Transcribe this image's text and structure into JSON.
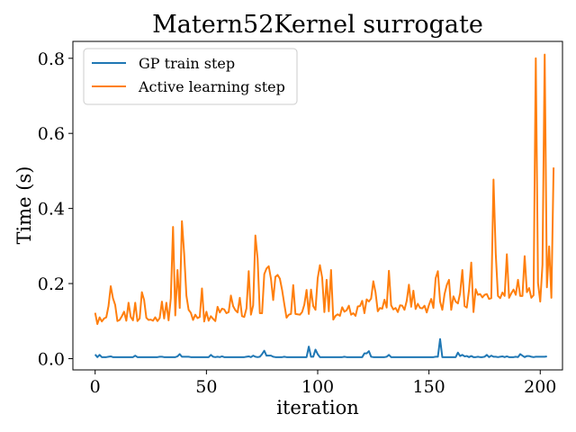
{
  "chart_data": {
    "type": "line",
    "title": "Matern52Kernel surrogate",
    "xlabel": "iteration",
    "ylabel": "Time (s)",
    "xlim": [
      -10,
      210
    ],
    "ylim": [
      -0.03,
      0.845
    ],
    "xticks": [
      0,
      50,
      100,
      150,
      200
    ],
    "yticks": [
      0.0,
      0.2,
      0.4,
      0.6,
      0.8
    ],
    "xtick_labels": [
      "0",
      "50",
      "100",
      "150",
      "200"
    ],
    "ytick_labels": [
      "0.0",
      "0.2",
      "0.4",
      "0.6",
      "0.8"
    ],
    "grid": false,
    "legend_position": "upper-left",
    "series": [
      {
        "name": "GP train step",
        "color": "#1f77b4",
        "values": [
          0.011,
          0.004,
          0.01,
          0.004,
          0.004,
          0.004,
          0.005,
          0.006,
          0.004,
          0.004,
          0.004,
          0.004,
          0.004,
          0.004,
          0.004,
          0.004,
          0.004,
          0.004,
          0.008,
          0.004,
          0.004,
          0.004,
          0.004,
          0.004,
          0.004,
          0.004,
          0.004,
          0.004,
          0.004,
          0.005,
          0.005,
          0.004,
          0.004,
          0.004,
          0.004,
          0.004,
          0.004,
          0.006,
          0.012,
          0.005,
          0.005,
          0.005,
          0.005,
          0.004,
          0.004,
          0.004,
          0.004,
          0.004,
          0.004,
          0.004,
          0.004,
          0.004,
          0.01,
          0.005,
          0.004,
          0.005,
          0.004,
          0.006,
          0.004,
          0.004,
          0.004,
          0.004,
          0.004,
          0.004,
          0.004,
          0.004,
          0.004,
          0.004,
          0.005,
          0.006,
          0.004,
          0.008,
          0.005,
          0.004,
          0.005,
          0.012,
          0.021,
          0.008,
          0.008,
          0.008,
          0.005,
          0.004,
          0.004,
          0.004,
          0.004,
          0.005,
          0.004,
          0.004,
          0.004,
          0.004,
          0.004,
          0.004,
          0.004,
          0.004,
          0.004,
          0.004,
          0.032,
          0.005,
          0.005,
          0.024,
          0.012,
          0.004,
          0.004,
          0.004,
          0.004,
          0.004,
          0.004,
          0.004,
          0.004,
          0.004,
          0.004,
          0.004,
          0.005,
          0.004,
          0.004,
          0.004,
          0.004,
          0.004,
          0.004,
          0.004,
          0.004,
          0.014,
          0.014,
          0.02,
          0.005,
          0.004,
          0.004,
          0.004,
          0.004,
          0.004,
          0.004,
          0.005,
          0.01,
          0.004,
          0.004,
          0.004,
          0.004,
          0.004,
          0.004,
          0.004,
          0.004,
          0.004,
          0.004,
          0.004,
          0.004,
          0.004,
          0.004,
          0.004,
          0.004,
          0.004,
          0.004,
          0.004,
          0.004,
          0.005,
          0.005,
          0.052,
          0.004,
          0.004,
          0.004,
          0.004,
          0.004,
          0.004,
          0.004,
          0.016,
          0.007,
          0.01,
          0.006,
          0.007,
          0.004,
          0.007,
          0.004,
          0.004,
          0.005,
          0.004,
          0.004,
          0.005,
          0.01,
          0.004,
          0.008,
          0.005,
          0.005,
          0.004,
          0.005,
          0.006,
          0.004,
          0.006,
          0.004,
          0.004,
          0.004,
          0.005,
          0.004,
          0.012,
          0.008,
          0.004,
          0.007,
          0.007,
          0.005,
          0.004,
          0.005,
          0.005,
          0.005,
          0.005,
          0.005,
          0.006
        ]
      },
      {
        "name": "Active learning step",
        "color": "#ff7f0e",
        "values": [
          0.122,
          0.092,
          0.11,
          0.099,
          0.107,
          0.11,
          0.14,
          0.193,
          0.161,
          0.143,
          0.1,
          0.103,
          0.113,
          0.125,
          0.101,
          0.149,
          0.111,
          0.102,
          0.149,
          0.1,
          0.107,
          0.177,
          0.156,
          0.109,
          0.103,
          0.104,
          0.101,
          0.11,
          0.1,
          0.108,
          0.152,
          0.107,
          0.149,
          0.102,
          0.161,
          0.351,
          0.115,
          0.236,
          0.135,
          0.366,
          0.279,
          0.168,
          0.13,
          0.122,
          0.103,
          0.117,
          0.108,
          0.111,
          0.187,
          0.099,
          0.125,
          0.101,
          0.113,
          0.106,
          0.1,
          0.138,
          0.123,
          0.133,
          0.131,
          0.121,
          0.124,
          0.168,
          0.14,
          0.129,
          0.123,
          0.162,
          0.113,
          0.111,
          0.134,
          0.233,
          0.117,
          0.142,
          0.328,
          0.266,
          0.121,
          0.121,
          0.225,
          0.24,
          0.246,
          0.213,
          0.156,
          0.218,
          0.223,
          0.213,
          0.183,
          0.145,
          0.109,
          0.117,
          0.119,
          0.196,
          0.119,
          0.118,
          0.117,
          0.124,
          0.144,
          0.183,
          0.119,
          0.184,
          0.14,
          0.13,
          0.214,
          0.249,
          0.216,
          0.124,
          0.21,
          0.126,
          0.236,
          0.104,
          0.114,
          0.118,
          0.114,
          0.137,
          0.125,
          0.129,
          0.141,
          0.117,
          0.121,
          0.114,
          0.139,
          0.14,
          0.154,
          0.121,
          0.158,
          0.152,
          0.16,
          0.206,
          0.176,
          0.126,
          0.135,
          0.133,
          0.157,
          0.136,
          0.234,
          0.142,
          0.131,
          0.135,
          0.124,
          0.142,
          0.141,
          0.13,
          0.154,
          0.197,
          0.138,
          0.181,
          0.132,
          0.146,
          0.135,
          0.134,
          0.141,
          0.123,
          0.143,
          0.159,
          0.135,
          0.214,
          0.233,
          0.152,
          0.13,
          0.172,
          0.196,
          0.21,
          0.13,
          0.166,
          0.152,
          0.147,
          0.174,
          0.236,
          0.14,
          0.136,
          0.183,
          0.256,
          0.124,
          0.185,
          0.17,
          0.172,
          0.163,
          0.17,
          0.172,
          0.159,
          0.161,
          0.477,
          0.28,
          0.167,
          0.161,
          0.176,
          0.167,
          0.278,
          0.162,
          0.174,
          0.184,
          0.17,
          0.21,
          0.167,
          0.167,
          0.273,
          0.177,
          0.188,
          0.162,
          0.169,
          0.8,
          0.201,
          0.152,
          0.25,
          0.81,
          0.19,
          0.299,
          0.162,
          0.509
        ]
      }
    ]
  }
}
